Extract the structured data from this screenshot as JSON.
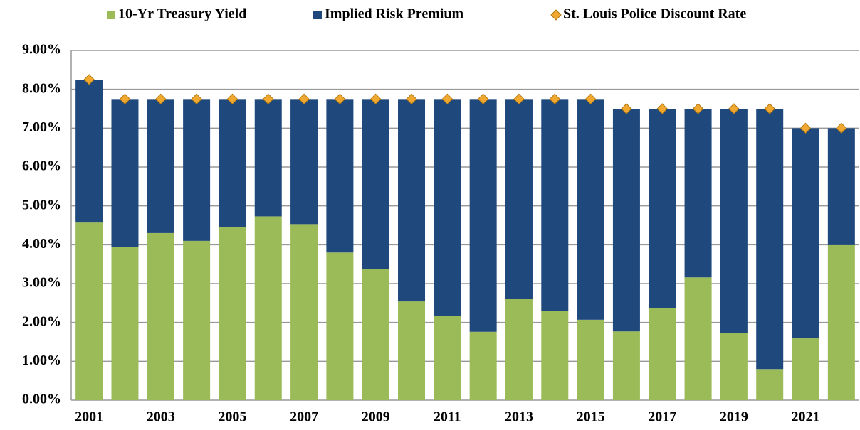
{
  "chart_data": {
    "type": "bar",
    "stacked": true,
    "categories": [
      "2001",
      null,
      "2003",
      null,
      "2005",
      null,
      "2007",
      null,
      "2009",
      null,
      "2011",
      null,
      "2013",
      null,
      "2015",
      null,
      "2017",
      null,
      "2019",
      null,
      "2021",
      null
    ],
    "series": [
      {
        "name": "10-Yr Treasury Yield",
        "color": "#9bbb59",
        "values": [
          4.57,
          3.95,
          4.3,
          4.1,
          4.46,
          4.73,
          4.53,
          3.8,
          3.38,
          2.54,
          2.16,
          1.76,
          2.61,
          2.3,
          2.07,
          1.77,
          2.36,
          3.16,
          1.72,
          0.8,
          1.59,
          3.99
        ]
      },
      {
        "name": "Implied Risk Premium",
        "color": "#1f497d",
        "values": [
          3.68,
          3.8,
          3.45,
          3.65,
          3.29,
          3.02,
          3.22,
          3.95,
          4.37,
          5.21,
          5.59,
          5.99,
          5.14,
          5.45,
          5.68,
          5.73,
          5.14,
          4.34,
          5.78,
          6.7,
          5.41,
          3.01
        ]
      },
      {
        "name": "St. Louis Police Discount Rate",
        "color": "#f0a830",
        "type": "marker",
        "values": [
          8.25,
          7.75,
          7.75,
          7.75,
          7.75,
          7.75,
          7.75,
          7.75,
          7.75,
          7.75,
          7.75,
          7.75,
          7.75,
          7.75,
          7.75,
          7.5,
          7.5,
          7.5,
          7.5,
          7.5,
          7.0,
          7.0
        ]
      }
    ],
    "ylim": [
      0,
      9
    ],
    "yticks": [
      {
        "value": 0,
        "label": "0.00%"
      },
      {
        "value": 1,
        "label": "1.00%"
      },
      {
        "value": 2,
        "label": "2.00%"
      },
      {
        "value": 3,
        "label": "3.00%"
      },
      {
        "value": 4,
        "label": "4.00%"
      },
      {
        "value": 5,
        "label": "5.00%"
      },
      {
        "value": 6,
        "label": "6.00%"
      },
      {
        "value": 7,
        "label": "7.00%"
      },
      {
        "value": 8,
        "label": "8.00%"
      },
      {
        "value": 9,
        "label": "9.00%"
      }
    ],
    "grid": true,
    "legend": "top"
  }
}
